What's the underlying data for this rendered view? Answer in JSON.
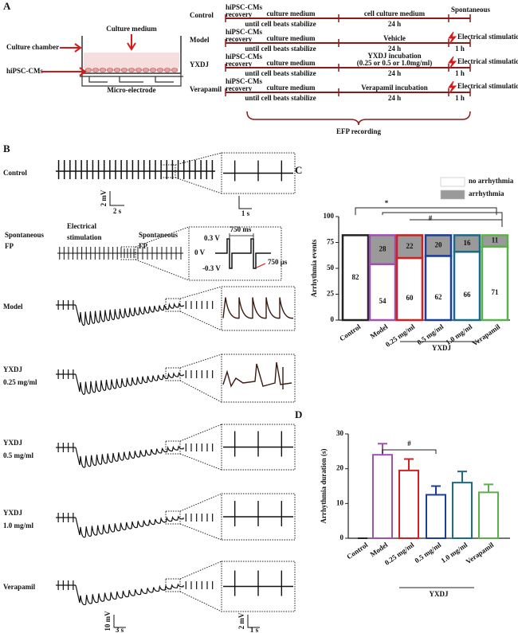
{
  "panel_a": {
    "label": "A",
    "chamber": {
      "medium": "Culture medium",
      "chamber": "Culture chamber",
      "cells": "hiPSC-CMs",
      "electrode": "Micro-electrode"
    },
    "protocols": [
      {
        "group": "Control",
        "recovery": [
          "hiPSC-CMs",
          "recovery"
        ],
        "stage1": "culture medium",
        "stage1_note": "until cell beats stabilize",
        "stage2": [
          "cell culture medium"
        ],
        "stage2_time": "24 h",
        "stage3": "Spontaneous"
      },
      {
        "group": "Model",
        "recovery": [
          "hiPSC-CMs",
          "recovery"
        ],
        "stage1": "culture medium",
        "stage1_note": "until cell beats stabilize",
        "stage2": [
          "Vehicle"
        ],
        "stage2_time": "24 h",
        "stage3": "Electrical stimulation",
        "stage3_time": "1 h"
      },
      {
        "group": "YXDJ",
        "recovery": [
          "hiPSC-CMs",
          "recovery"
        ],
        "stage1": "culture medium",
        "stage1_note": "until cell beats stabilize",
        "stage2": [
          "YXDJ incubation",
          "(0.25 or 0.5 or 1.0mg/ml)"
        ],
        "stage2_time": "24 h",
        "stage3": "Electrical stimulation",
        "stage3_time": "1 h"
      },
      {
        "group": "Verapamil",
        "recovery": [
          "hiPSC-CMs",
          "recovery"
        ],
        "stage1": "culture medium",
        "stage1_note": "until cell beats stabilize",
        "stage2": [
          "Verapamil incubation"
        ],
        "stage2_time": "24 h",
        "stage3": "Electrical stimulation",
        "stage3_time": "1 h"
      }
    ],
    "recording": "EFP recording"
  },
  "panel_b": {
    "label": "B",
    "traces": [
      [
        "Control"
      ],
      [
        "Model"
      ],
      [
        "YXDJ",
        "0.25 mg/ml"
      ],
      [
        "YXDJ",
        "0.5 mg/ml"
      ],
      [
        "YXDJ",
        "1.0 mg/ml"
      ],
      [
        "Verapamil"
      ]
    ],
    "stim": {
      "before": [
        "Spontaneous",
        "FP"
      ],
      "during": [
        "Electrical",
        "stimulation"
      ],
      "after": [
        "Spontaneous",
        "FP"
      ],
      "v_high": "0.3 V",
      "v_zero": "0 V",
      "v_low": "-0.3 V",
      "interval": "750 ms",
      "width": "750 μs"
    },
    "scale_top": {
      "v": "2 mV",
      "t": "2 s",
      "inset_t": "1 s"
    },
    "scale_bottom": {
      "v": "10 mV",
      "t": "3 s",
      "inset_v": "2 mV",
      "inset_t": "1 s"
    }
  },
  "chart_data": [
    {
      "type": "stacked-bar",
      "label": "C",
      "y_label": "Arrhythmia events",
      "categories": [
        "Control",
        "Model",
        "0.25 mg/ml",
        "0.5 mg/ml",
        "1.0 mg/ml",
        "Verapamil"
      ],
      "group_label": "YXDJ",
      "edge_colors": [
        "#222222",
        "#a050b0",
        "#d02020",
        "#1a3f9a",
        "#1a6a8a",
        "#5ab04a"
      ],
      "series": [
        {
          "name": "no arrhythmia",
          "color": "#ffffff",
          "values": [
            82,
            54,
            60,
            62,
            66,
            71
          ]
        },
        {
          "name": "arrhythmia",
          "color": "#9a9a9a",
          "values": [
            0,
            28,
            22,
            20,
            16,
            11
          ]
        }
      ],
      "ylim": [
        0,
        100
      ],
      "yticks": [
        0,
        25,
        50,
        75,
        100
      ],
      "annotations": [
        "*",
        "#"
      ]
    },
    {
      "type": "bar",
      "label": "D",
      "y_label": "Arrhythmia duration (s)",
      "categories": [
        "Control",
        "Model",
        "0.25 mg/ml",
        "0.5 mg/ml",
        "1.0 mg/ml",
        "Verapamil"
      ],
      "group_label": "YXDJ",
      "edge_colors": [
        "#222222",
        "#a050b0",
        "#d02020",
        "#1a3f9a",
        "#1a6a8a",
        "#5ab04a"
      ],
      "values": [
        0,
        24,
        19.5,
        12.5,
        16,
        13.2
      ],
      "errors": [
        0,
        3.2,
        3.3,
        2.5,
        3.2,
        2.3
      ],
      "ylim": [
        0,
        30
      ],
      "yticks": [
        0,
        10,
        20,
        30
      ],
      "annotations": [
        "#"
      ]
    }
  ]
}
